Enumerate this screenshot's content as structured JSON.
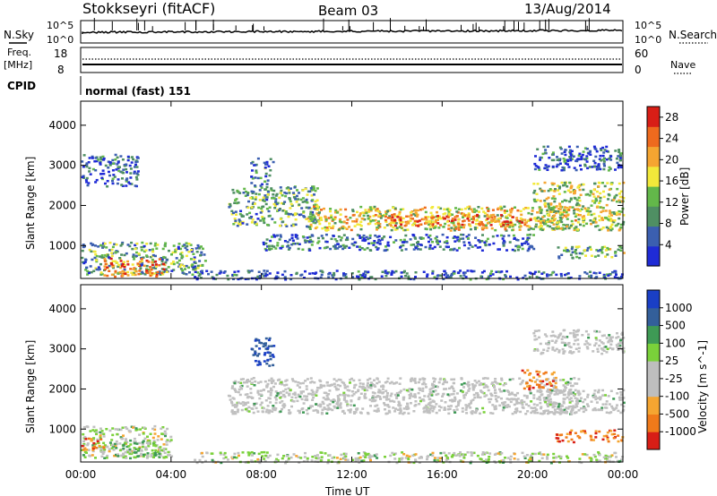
{
  "header": {
    "title": "Stokkseyri (fitACF)",
    "beam": "Beam 03",
    "date": "13/Aug/2014"
  },
  "noise_panel": {
    "left_label": "N.Sky",
    "left_ticks": [
      "10^5",
      "10^0"
    ],
    "right_label": "N.Search",
    "right_ticks": [
      "10^5",
      "10^0"
    ]
  },
  "freq_panel": {
    "left_label_line1": "Freq.",
    "left_label_line2": "[MHz]",
    "left_ticks": [
      "18",
      "8"
    ],
    "right_label": "Nave",
    "right_ticks": [
      "60",
      "0"
    ]
  },
  "cpid_panel": {
    "label": "CPID",
    "text": "normal (fast) 151"
  },
  "colors": {
    "power_scale": [
      "#1f2bd6",
      "#3b5fb0",
      "#4f8f63",
      "#63b84a",
      "#f2e93a",
      "#f5a531",
      "#ee6a1e",
      "#d81e16"
    ],
    "velocity_scale": [
      "#1a3fc6",
      "#335f9a",
      "#3e9a55",
      "#7ad13a",
      "#bebebe",
      "#bebebe",
      "#f5a531",
      "#f07a1a",
      "#d81e16"
    ],
    "velocity_gray": "#c0c0c0"
  },
  "chart_data": [
    {
      "type": "heatmap",
      "title": "",
      "xlabel": "Time UT",
      "ylabel": "Slant Range [km]",
      "x_ticks": [
        "00:00",
        "04:00",
        "08:00",
        "12:00",
        "16:00",
        "20:00",
        "00:00"
      ],
      "xlim_hours": [
        0,
        24
      ],
      "y_ticks": [
        1000,
        2000,
        3000,
        4000
      ],
      "ylim": [
        180,
        4600
      ],
      "colorbar": {
        "label": "Power [dB]",
        "ticks": [
          4,
          8,
          12,
          16,
          20,
          24,
          28
        ],
        "range": [
          0,
          30
        ]
      },
      "bands": [
        {
          "t0": 0.0,
          "t1": 5.5,
          "r0": 300,
          "r1": 1100,
          "level": 0.35
        },
        {
          "t0": 1.0,
          "t1": 3.8,
          "r0": 250,
          "r1": 700,
          "level": 0.8
        },
        {
          "t0": 0.0,
          "t1": 2.5,
          "r0": 2500,
          "r1": 3300,
          "level": 0.15
        },
        {
          "t0": 6.5,
          "t1": 10.5,
          "r0": 1500,
          "r1": 2500,
          "level": 0.35
        },
        {
          "t0": 7.5,
          "t1": 8.5,
          "r0": 2500,
          "r1": 3200,
          "level": 0.3
        },
        {
          "t0": 10.0,
          "t1": 22.0,
          "r0": 1400,
          "r1": 2000,
          "level": 0.55
        },
        {
          "t0": 13.5,
          "t1": 20.0,
          "r0": 1500,
          "r1": 1800,
          "level": 0.8
        },
        {
          "t0": 8.0,
          "t1": 20.0,
          "r0": 900,
          "r1": 1300,
          "level": 0.2
        },
        {
          "t0": 20.0,
          "t1": 24.0,
          "r0": 1400,
          "r1": 2600,
          "level": 0.5
        },
        {
          "t0": 21.0,
          "t1": 24.0,
          "r0": 700,
          "r1": 1000,
          "level": 0.4
        },
        {
          "t0": 20.0,
          "t1": 24.0,
          "r0": 2900,
          "r1": 3500,
          "level": 0.2
        },
        {
          "t0": 5.0,
          "t1": 24.0,
          "r0": 180,
          "r1": 400,
          "level": 0.15
        }
      ]
    },
    {
      "type": "heatmap",
      "title": "",
      "xlabel": "Time UT",
      "ylabel": "Slant Range [km]",
      "x_ticks": [
        "00:00",
        "04:00",
        "08:00",
        "12:00",
        "16:00",
        "20:00",
        "00:00"
      ],
      "xlim_hours": [
        0,
        24
      ],
      "y_ticks": [
        1000,
        2000,
        3000,
        4000
      ],
      "ylim": [
        180,
        4600
      ],
      "colorbar": {
        "label": "Velocity [m s^-1]",
        "ticks": [
          "1000",
          "500",
          "100",
          "25",
          "-25",
          "-100",
          "-500",
          "-1000"
        ],
        "range": [
          -1500,
          1500
        ]
      },
      "bands": [
        {
          "t0": 0.0,
          "t1": 4.0,
          "r0": 300,
          "r1": 1100,
          "kind": "mixed"
        },
        {
          "t0": 1.5,
          "t1": 3.5,
          "r0": 300,
          "r1": 700,
          "kind": "positive_low"
        },
        {
          "t0": 0.0,
          "t1": 1.0,
          "r0": 500,
          "r1": 800,
          "kind": "negative_mid"
        },
        {
          "t0": 6.5,
          "t1": 22.0,
          "r0": 1400,
          "r1": 2300,
          "kind": "ground"
        },
        {
          "t0": 7.5,
          "t1": 8.5,
          "r0": 2600,
          "r1": 3300,
          "kind": "positive_high"
        },
        {
          "t0": 19.5,
          "t1": 21.0,
          "r0": 2000,
          "r1": 2500,
          "kind": "negative_mid"
        },
        {
          "t0": 21.0,
          "t1": 24.0,
          "r0": 700,
          "r1": 1000,
          "kind": "negative_mid"
        },
        {
          "t0": 20.0,
          "t1": 24.0,
          "r0": 1400,
          "r1": 2000,
          "kind": "ground"
        },
        {
          "t0": 5.0,
          "t1": 24.0,
          "r0": 180,
          "r1": 450,
          "kind": "mixed"
        },
        {
          "t0": 20.0,
          "t1": 24.0,
          "r0": 2900,
          "r1": 3500,
          "kind": "ground"
        }
      ]
    }
  ]
}
